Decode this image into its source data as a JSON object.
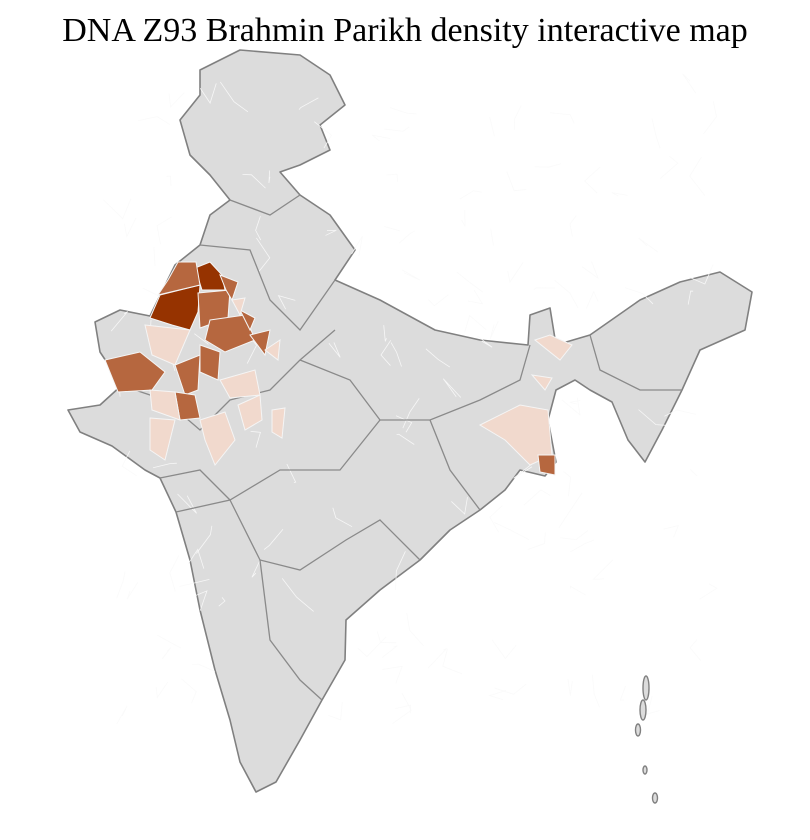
{
  "title": "DNA Z93 Brahmin Parikh density interactive map",
  "colors": {
    "no_data": "#dcdcdc",
    "low": "#f1d9cd",
    "medium": "#b6673f",
    "high": "#963300",
    "border": "#808080"
  }
}
